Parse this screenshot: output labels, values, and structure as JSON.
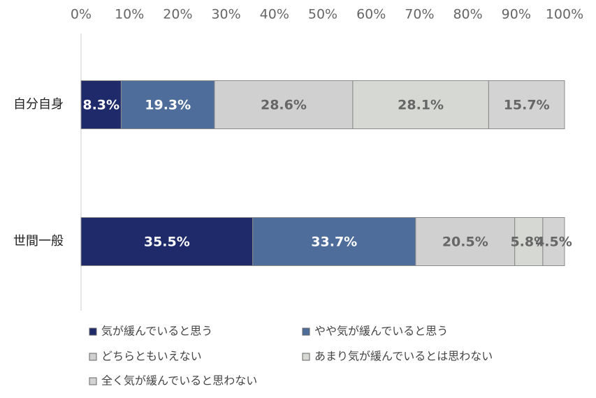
{
  "chart_data": {
    "type": "stacked-bar-horizontal",
    "categories": [
      "自分自身",
      "世間一般"
    ],
    "series": [
      {
        "name": "気が緩んでいると思う",
        "color": "#1f2a6b",
        "label_color": "#ffffff",
        "values": [
          8.3,
          35.5
        ],
        "value_labels": [
          "8.3%",
          "35.5%"
        ]
      },
      {
        "name": "やや気が緩んでいると思う",
        "color": "#4f6d9a",
        "label_color": "#ffffff",
        "values": [
          19.3,
          33.7
        ],
        "value_labels": [
          "19.3%",
          "33.7%"
        ]
      },
      {
        "name": "どちらともいえない",
        "color": "#d0d0d0",
        "label_color": "#666666",
        "values": [
          28.6,
          20.5
        ],
        "value_labels": [
          "28.6%",
          "20.5%"
        ]
      },
      {
        "name": "あまり気が緩んでいるとは思わない",
        "color": "#d5d8d3",
        "label_color": "#666666",
        "values": [
          28.1,
          5.8
        ],
        "value_labels": [
          "28.1%",
          "5.8%"
        ]
      },
      {
        "name": "全く気が緩んでいると思わない",
        "color": "#d3d3d3",
        "label_color": "#666666",
        "values": [
          15.7,
          4.5
        ],
        "value_labels": [
          "15.7%",
          "4.5%"
        ]
      }
    ],
    "xlim": [
      0,
      100
    ],
    "xticks": [
      {
        "value": 0,
        "label": "0%"
      },
      {
        "value": 10,
        "label": "10%"
      },
      {
        "value": 20,
        "label": "20%"
      },
      {
        "value": 30,
        "label": "30%"
      },
      {
        "value": 40,
        "label": "40%"
      },
      {
        "value": 50,
        "label": "50%"
      },
      {
        "value": 60,
        "label": "60%"
      },
      {
        "value": 70,
        "label": "70%"
      },
      {
        "value": 80,
        "label": "80%"
      },
      {
        "value": 90,
        "label": "90%"
      },
      {
        "value": 100,
        "label": "100%"
      }
    ]
  }
}
